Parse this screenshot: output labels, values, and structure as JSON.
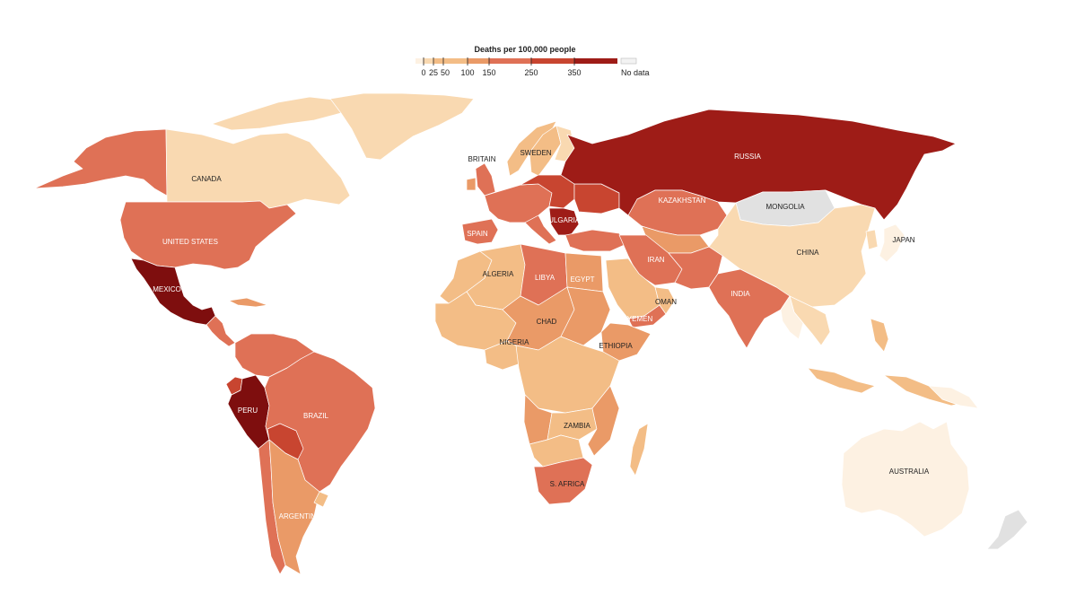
{
  "legend": {
    "title": "Deaths per 100,000 people",
    "ticks": [
      "0",
      "25",
      "50",
      "100",
      "150",
      "250",
      "350"
    ],
    "no_data_label": "No data"
  },
  "colors": {
    "d0": "#fdf1e2",
    "d25": "#f9d9b1",
    "d50": "#f3bd86",
    "d100": "#ea9a67",
    "d150": "#df7156",
    "d250": "#c84530",
    "d350": "#9e1c17",
    "d400": "#7e0e0e",
    "nodata": "#e1e1e1",
    "ocean": "#ffffff",
    "border": "#ffffff"
  },
  "labels": {
    "canada": "CANADA",
    "united_states": "UNITED STATES",
    "mexico": "MEXICO",
    "peru": "PERU",
    "brazil": "BRAZIL",
    "argentina": "ARGENTINA",
    "britain": "BRITAIN",
    "sweden": "SWEDEN",
    "spain": "SPAIN",
    "bulgaria": "BULGARIA",
    "russia": "RUSSIA",
    "kazakhstan": "KAZAKHSTAN",
    "mongolia": "MONGOLIA",
    "china": "CHINA",
    "japan": "JAPAN",
    "iran": "IRAN",
    "india": "INDIA",
    "oman": "OMAN",
    "yemen": "YEMEN",
    "algeria": "ALGERIA",
    "libya": "LIBYA",
    "egypt": "EGYPT",
    "chad": "CHAD",
    "nigeria": "NIGERIA",
    "ethiopia": "ETHIOPIA",
    "zambia": "ZAMBIA",
    "south_africa": "S. AFRICA",
    "australia": "AUSTRALIA"
  }
}
